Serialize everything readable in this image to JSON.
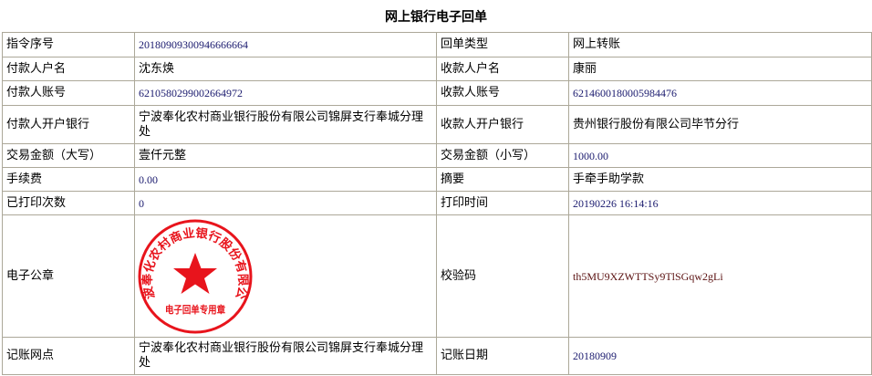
{
  "title": "网上银行电子回单",
  "rows": [
    {
      "l1": "指令序号",
      "v1": "20180909300946666664",
      "l2": "回单类型",
      "v2": "网上转账"
    },
    {
      "l1": "付款人户名",
      "v1": "沈东焕",
      "l2": "收款人户名",
      "v2": "康丽"
    },
    {
      "l1": "付款人账号",
      "v1": "6210580299002664972",
      "l2": "收款人账号",
      "v2": "6214600180005984476"
    },
    {
      "l1": "付款人开户银行",
      "v1": "宁波奉化农村商业银行股份有限公司锦屏支行奉城分理处",
      "l2": "收款人开户银行",
      "v2": "贵州银行股份有限公司毕节分行"
    },
    {
      "l1": "交易金额（大写）",
      "v1": "壹仟元整",
      "l2": "交易金额（小写）",
      "v2": "1000.00"
    },
    {
      "l1": "手续费",
      "v1": "0.00",
      "l2": "摘要",
      "v2": "手牵手助学款"
    },
    {
      "l1": "已打印次数",
      "v1": "0",
      "l2": "打印时间",
      "v2": "20190226 16:14:16"
    },
    {
      "l1": "电子公章",
      "l2": "校验码",
      "v2": "th5MU9XZWTTSy9TlSGqw2gLi"
    },
    {
      "l1": "记账网点",
      "v1": "宁波奉化农村商业银行股份有限公司锦屏支行奉城分理处",
      "l2": "记账日期",
      "v2": "20180909"
    }
  ],
  "stamp": {
    "ring_text": "宁波奉化农村商业银行股份有限公司",
    "bottom_text": "电子回单专用章",
    "color": "#e8141c"
  }
}
